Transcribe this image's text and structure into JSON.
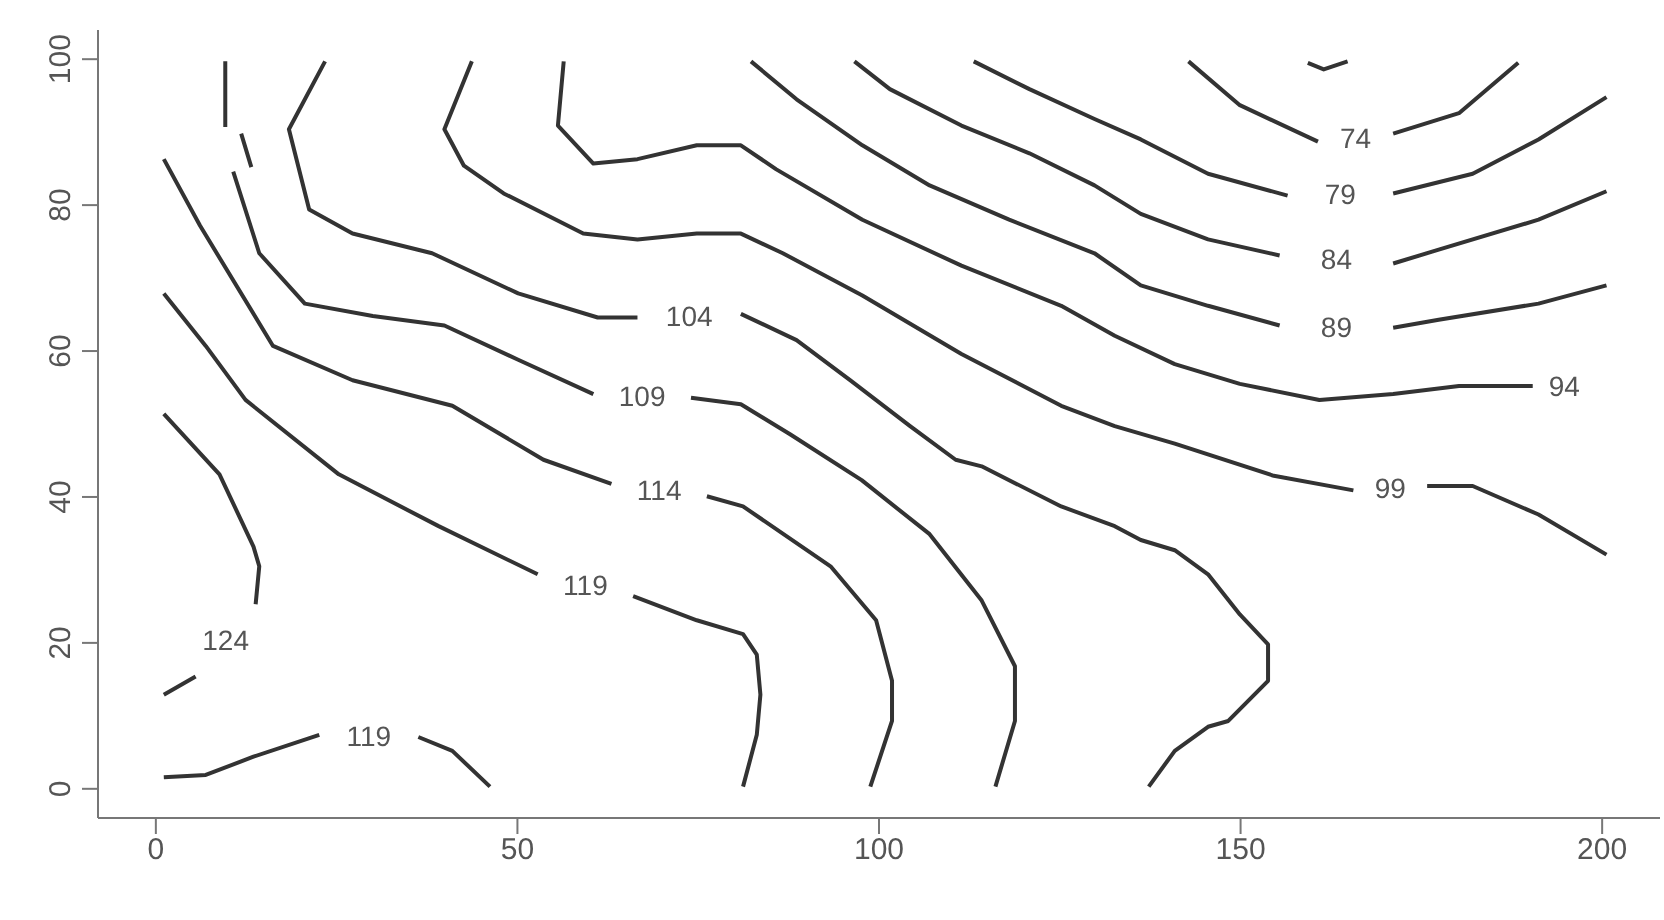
{
  "chart_data": {
    "type": "line",
    "xlim": [
      -8,
      208
    ],
    "ylim": [
      -4,
      104
    ],
    "xticks": [
      0,
      50,
      100,
      150,
      200
    ],
    "yticks": [
      0,
      20,
      40,
      60,
      80,
      100
    ],
    "grid": false,
    "legend": false,
    "marker": "none",
    "line_style": "solid",
    "series": [
      {
        "name": "124",
        "color": "#333333",
        "x": [
          1.1,
          8.8,
          13.5,
          14.3,
          13.8,
          null,
          5.5,
          1.1
        ],
        "values": [
          51.4,
          43.1,
          33.2,
          30.5,
          25.3,
          null,
          15.4,
          12.9
        ]
      },
      {
        "name": "119",
        "color": "#333333",
        "x": [
          1.1,
          6.9,
          12.4,
          25.3,
          39.1,
          52.8,
          null,
          66.0,
          74.8,
          81.2,
          83.1,
          83.6,
          83.1,
          81.2
        ],
        "values": [
          67.9,
          60.7,
          53.3,
          43.1,
          36.0,
          29.4,
          null,
          26.4,
          23.1,
          21.2,
          18.4,
          12.9,
          7.4,
          0.3
        ]
      },
      {
        "name": "119",
        "color": "#333333",
        "x": [
          1.1,
          6.9,
          13.5,
          22.6,
          null,
          36.3,
          41.0,
          46.2
        ],
        "values": [
          1.6,
          1.9,
          4.4,
          7.4,
          null,
          7.1,
          5.2,
          0.3
        ]
      },
      {
        "name": "114",
        "color": "#333333",
        "x": [
          1.1,
          6.1,
          16.2,
          27.2,
          41.0,
          53.6,
          63.0,
          null,
          76.2,
          81.2,
          93.3,
          99.6,
          101.8,
          101.8,
          98.8
        ],
        "values": [
          86.3,
          77.2,
          60.7,
          56.0,
          52.5,
          45.1,
          41.8,
          null,
          40.1,
          38.7,
          30.5,
          23.1,
          14.8,
          9.3,
          0.3
        ]
      },
      {
        "name": "109",
        "color": "#333333",
        "x": [
          9.6,
          9.6,
          null,
          11.8,
          13.2,
          null,
          10.7,
          14.3,
          20.6,
          30.0,
          39.9,
          50.1,
          60.5,
          null,
          74.0,
          80.9,
          87.7,
          97.6,
          107.0,
          114.2,
          118.8,
          118.8,
          116.1
        ],
        "values": [
          99.7,
          90.7,
          null,
          89.8,
          85.2,
          null,
          84.6,
          73.4,
          66.5,
          64.8,
          63.5,
          58.8,
          54.1,
          null,
          53.6,
          52.7,
          48.6,
          42.3,
          34.9,
          25.8,
          16.8,
          9.3,
          0.3
        ]
      },
      {
        "name": "104",
        "color": "#333333",
        "x": [
          23.4,
          18.4,
          21.2,
          27.2,
          38.2,
          50.1,
          61.1,
          66.6,
          null,
          80.9,
          88.6,
          96.0,
          104.3,
          110.6,
          114.2,
          125.2,
          132.6,
          136.2,
          140.9,
          145.5,
          149.9,
          153.8,
          153.8,
          148.3,
          145.5,
          140.9,
          137.3
        ],
        "values": [
          99.7,
          90.4,
          79.4,
          76.1,
          73.4,
          67.9,
          64.6,
          64.6,
          null,
          65.1,
          61.5,
          56.0,
          49.7,
          45.1,
          44.2,
          38.7,
          36.0,
          34.1,
          32.7,
          29.4,
          23.9,
          19.8,
          14.8,
          9.3,
          8.5,
          5.2,
          0.3
        ]
      },
      {
        "name": "99",
        "color": "#333333",
        "x": [
          43.7,
          39.9,
          42.6,
          48.1,
          59.1,
          66.6,
          74.8,
          80.9,
          86.7,
          97.7,
          111.4,
          125.2,
          132.6,
          140.9,
          154.6,
          165.6,
          null,
          175.8,
          182.1,
          191.2,
          200.6
        ],
        "values": [
          99.7,
          90.4,
          85.4,
          81.6,
          76.1,
          75.3,
          76.1,
          76.1,
          73.4,
          67.6,
          59.6,
          52.5,
          49.7,
          47.3,
          42.9,
          40.9,
          null,
          41.5,
          41.5,
          37.6,
          32.1
        ]
      },
      {
        "name": "94",
        "color": "#333333",
        "x": [
          56.4,
          55.6,
          60.5,
          66.6,
          74.8,
          80.9,
          85.8,
          97.7,
          111.4,
          125.2,
          132.6,
          140.9,
          149.9,
          160.9,
          171.1,
          180.2,
          190.4
        ],
        "values": [
          99.7,
          90.9,
          85.7,
          86.3,
          88.2,
          88.2,
          84.9,
          78.0,
          71.7,
          66.2,
          62.1,
          58.2,
          55.5,
          53.3,
          54.1,
          55.2,
          55.2
        ]
      },
      {
        "name": "89",
        "color": "#333333",
        "x": [
          82.3,
          88.6,
          97.7,
          107.0,
          118.0,
          129.8,
          136.2,
          145.5,
          155.4,
          null,
          171.1,
          177.4,
          191.2,
          200.6
        ],
        "values": [
          99.7,
          94.5,
          88.2,
          82.7,
          78.0,
          73.4,
          69.0,
          66.2,
          63.5,
          null,
          63.2,
          64.3,
          66.5,
          69.0
        ]
      },
      {
        "name": "84",
        "color": "#333333",
        "x": [
          96.6,
          101.5,
          111.4,
          120.8,
          129.8,
          136.2,
          145.5,
          155.4,
          null,
          171.1,
          177.4,
          191.2,
          200.6
        ],
        "values": [
          99.7,
          95.9,
          90.9,
          87.1,
          82.7,
          78.8,
          75.3,
          73.1,
          null,
          72.0,
          73.9,
          78.0,
          81.9
        ]
      },
      {
        "name": "79",
        "color": "#333333",
        "x": [
          113.1,
          120.8,
          129.8,
          136.2,
          145.5,
          156.5,
          null,
          171.1,
          182.1,
          191.2,
          200.6
        ],
        "values": [
          99.7,
          95.9,
          91.8,
          89.0,
          84.3,
          81.3,
          null,
          81.6,
          84.3,
          89.0,
          94.8
        ]
      },
      {
        "name": "74",
        "color": "#333333",
        "x": [
          142.8,
          149.9,
          160.7,
          null,
          171.1,
          180.2,
          188.4
        ],
        "values": [
          99.7,
          93.7,
          88.7,
          null,
          89.8,
          92.6,
          99.5
        ]
      },
      {
        "color": "#333333",
        "x": [
          159.3,
          161.5,
          164.8
        ],
        "values": [
          99.5,
          98.6,
          99.7
        ]
      }
    ]
  }
}
